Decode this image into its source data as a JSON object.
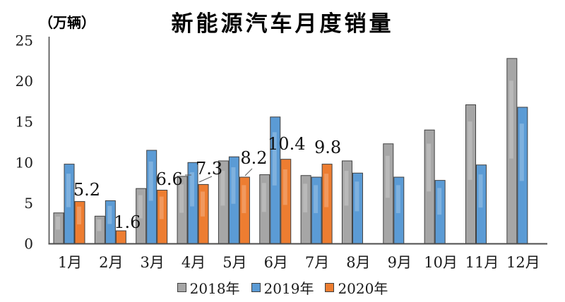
{
  "title": "新能源汽车月度销量",
  "unit_label": "（万辆）",
  "chart_data": {
    "type": "bar",
    "title": "新能源汽车月度销量",
    "ylabel": "（万辆）",
    "xlabel": "",
    "ylim": [
      0,
      25
    ],
    "yticks": [
      0,
      5,
      10,
      15,
      20,
      25
    ],
    "grid": false,
    "legend_position": "bottom",
    "categories": [
      "1月",
      "2月",
      "3月",
      "4月",
      "5月",
      "6月",
      "7月",
      "8月",
      "9月",
      "10月",
      "11月",
      "12月"
    ],
    "series": [
      {
        "name": "2018年",
        "color": "#a6a6a6",
        "values": [
          3.8,
          3.4,
          6.8,
          8.3,
          10.2,
          8.5,
          8.4,
          10.2,
          12.3,
          14.0,
          17.1,
          22.8
        ]
      },
      {
        "name": "2019年",
        "color": "#5b9bd5",
        "values": [
          9.8,
          5.3,
          11.5,
          10.0,
          10.7,
          15.6,
          8.2,
          8.7,
          8.2,
          7.8,
          9.7,
          16.8
        ]
      },
      {
        "name": "2020年",
        "color": "#ed7d31",
        "values": [
          5.2,
          1.6,
          6.6,
          7.3,
          8.2,
          10.4,
          9.8,
          null,
          null,
          null,
          null,
          null
        ]
      }
    ],
    "data_labels": {
      "series": "2020年",
      "values": [
        "5.2",
        "1.6",
        "6.6",
        "7.3",
        "8.2",
        "10.4",
        "9.8"
      ]
    },
    "colors": {
      "axis": "#4d4d4d",
      "bar_border": "#404040",
      "text": "#1a1a1a"
    }
  }
}
